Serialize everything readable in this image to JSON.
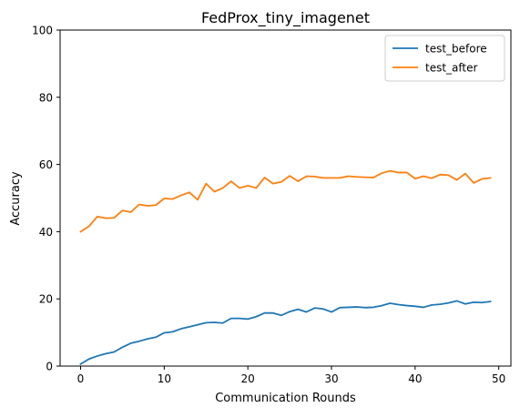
{
  "chart_data": {
    "type": "line",
    "title": "FedProx_tiny_imagenet",
    "xlabel": "Communication Rounds",
    "ylabel": "Accuracy",
    "xlim": [
      -2.45,
      51.45
    ],
    "ylim": [
      0,
      100
    ],
    "xticks": [
      0,
      10,
      20,
      30,
      40,
      50
    ],
    "yticks": [
      0,
      20,
      40,
      60,
      80,
      100
    ],
    "grid": false,
    "legend_position": "top-right",
    "x": [
      0,
      1,
      2,
      3,
      4,
      5,
      6,
      7,
      8,
      9,
      10,
      11,
      12,
      13,
      14,
      15,
      16,
      17,
      18,
      19,
      20,
      21,
      22,
      23,
      24,
      25,
      26,
      27,
      28,
      29,
      30,
      31,
      32,
      33,
      34,
      35,
      36,
      37,
      38,
      39,
      40,
      41,
      42,
      43,
      44,
      45,
      46,
      47,
      48,
      49
    ],
    "series": [
      {
        "name": "test_before",
        "color": "#1f77b4",
        "values": [
          0.6,
          2.1,
          3.0,
          3.7,
          4.2,
          5.6,
          6.8,
          7.4,
          8.1,
          8.6,
          9.9,
          10.2,
          11.1,
          11.7,
          12.3,
          12.9,
          13.0,
          12.8,
          14.2,
          14.2,
          14.0,
          14.7,
          15.8,
          15.8,
          15.1,
          16.2,
          16.9,
          16.1,
          17.3,
          17.0,
          16.1,
          17.4,
          17.5,
          17.6,
          17.4,
          17.5,
          18.0,
          18.7,
          18.3,
          18.0,
          17.8,
          17.5,
          18.2,
          18.4,
          18.8,
          19.4,
          18.5,
          19.0,
          18.9,
          19.2
        ]
      },
      {
        "name": "test_after",
        "color": "#ff7f0e",
        "values": [
          40.0,
          41.6,
          44.5,
          44.0,
          44.1,
          46.3,
          45.8,
          48.1,
          47.7,
          47.9,
          49.9,
          49.7,
          50.8,
          51.7,
          49.5,
          54.3,
          51.9,
          53.0,
          55.0,
          53.0,
          53.7,
          53.0,
          56.1,
          54.3,
          54.8,
          56.6,
          55.0,
          56.5,
          56.4,
          56.0,
          56.0,
          56.0,
          56.5,
          56.3,
          56.2,
          56.1,
          57.4,
          58.1,
          57.6,
          57.6,
          55.8,
          56.5,
          55.9,
          57.0,
          56.8,
          55.4,
          57.3,
          54.5,
          55.7,
          56.0
        ]
      }
    ]
  }
}
